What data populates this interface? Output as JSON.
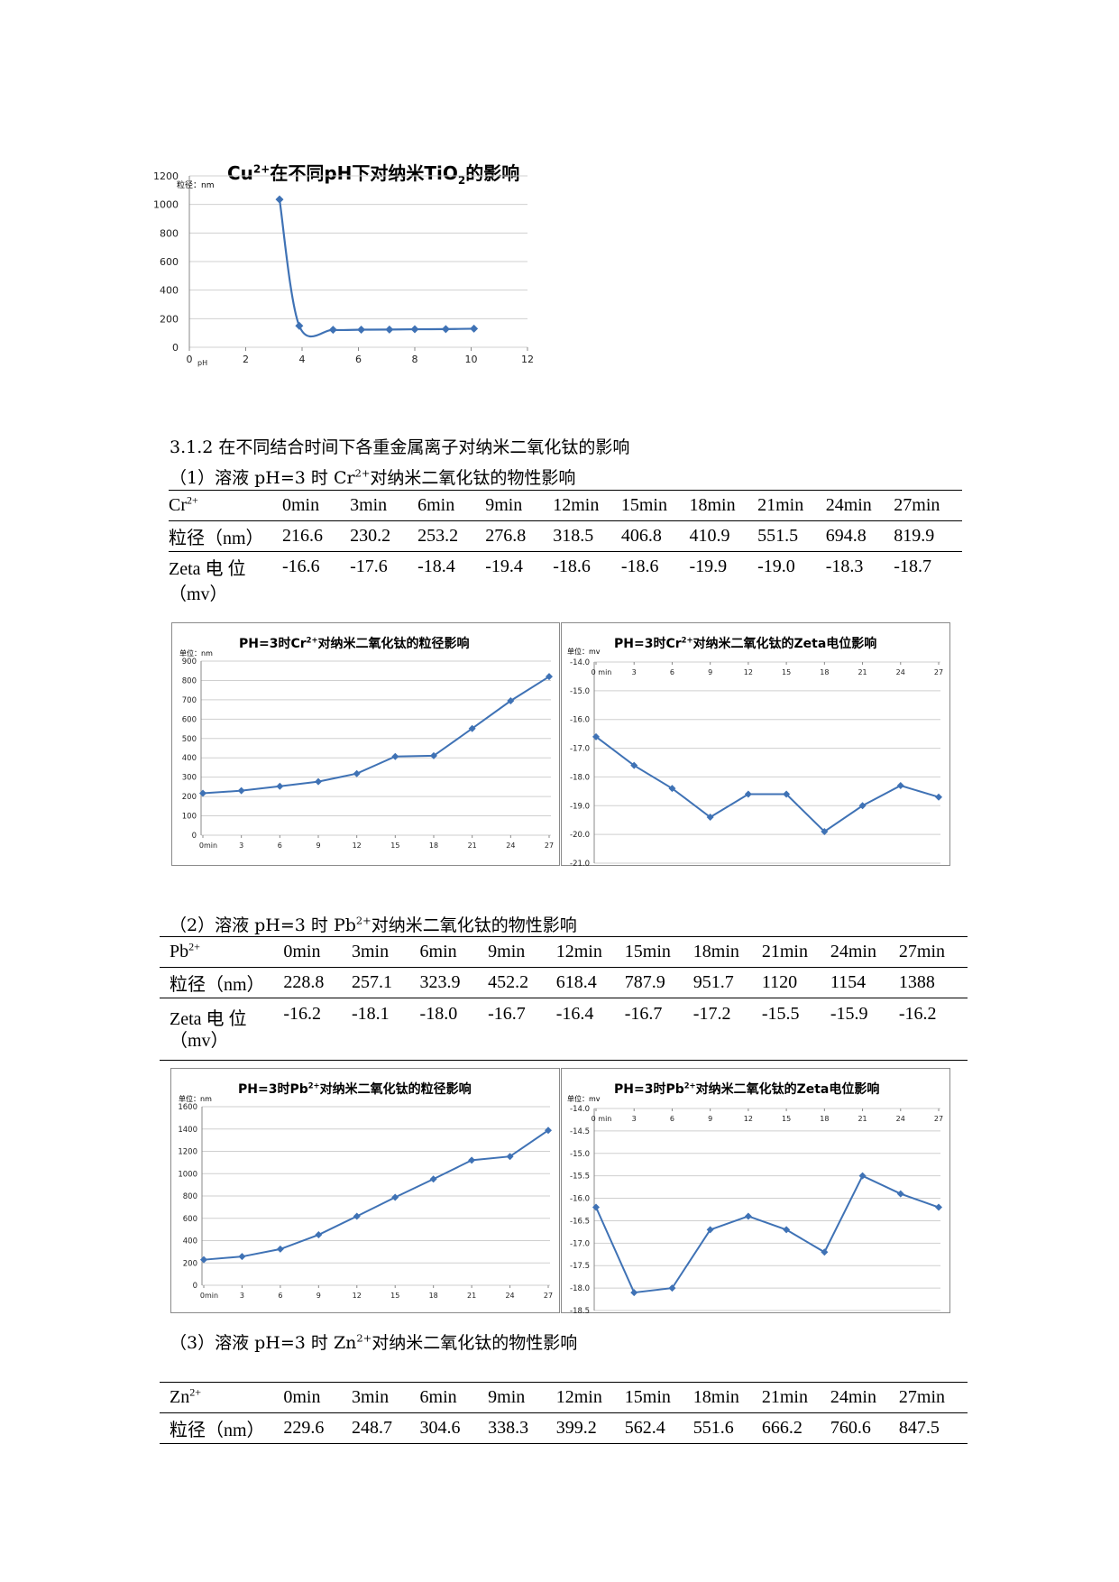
{
  "chart1": {
    "title_pre": "Cu",
    "title_sup": "2+",
    "title_mid": "在不同pH下对纳米TiO",
    "title_sub": "2",
    "title_post": "的影响",
    "unit": "粒径：nm",
    "x_unit": "pH",
    "chart_data": {
      "type": "line",
      "x": [
        3.2,
        3.9,
        5.1,
        6.1,
        7.1,
        8.0,
        9.1,
        10.1
      ],
      "values": [
        1035,
        150,
        122,
        123,
        124,
        126,
        127,
        130
      ],
      "xlim": [
        0,
        12
      ],
      "ylim": [
        0,
        1200
      ],
      "xticks": [
        "0",
        "2",
        "4",
        "6",
        "8",
        "10",
        "12"
      ],
      "yticks": [
        "0",
        "200",
        "400",
        "600",
        "800",
        "1000",
        "1200"
      ],
      "smooth": true,
      "grid": true,
      "color": "#3f72b5"
    }
  },
  "section_heading": "3.1.2 在不同结合时间下各重金属离子对纳米二氧化钛的影响",
  "cr_caption": {
    "pre": "（1）溶液 pH=3 时 Cr",
    "sup": "2+",
    "post": "对纳米二氧化钛的物性影响"
  },
  "cr_table": {
    "ion": "Cr",
    "ion_sup": "2+",
    "headers": [
      "0min",
      "3min",
      "6min",
      "9min",
      "12min",
      "15min",
      "18min",
      "21min",
      "24min",
      "27min"
    ],
    "size_label": "粒径（nm）",
    "size": [
      "216.6",
      "230.2",
      "253.2",
      "276.8",
      "318.5",
      "406.8",
      "410.9",
      "551.5",
      "694.8",
      "819.9"
    ],
    "zeta_label": "Zeta 电 位",
    "zeta_label2": "（mv）",
    "zeta": [
      "-16.6",
      "-17.6",
      "-18.4",
      "-19.4",
      "-18.6",
      "-18.6",
      "-19.9",
      "-19.0",
      "-18.3",
      "-18.7"
    ]
  },
  "cr_size_chart": {
    "title_pre": "PH=3时Cr",
    "title_sup": "2+",
    "title_post": "对纳米二氧化钛的粒径影响",
    "unit": "单位：nm",
    "chart_data": {
      "type": "line",
      "categories": [
        "0min",
        "3",
        "6",
        "9",
        "12",
        "15",
        "18",
        "21",
        "24",
        "27"
      ],
      "values": [
        216.6,
        230.2,
        253.2,
        276.8,
        318.5,
        406.8,
        410.9,
        551.5,
        694.8,
        819.9
      ],
      "ylim": [
        0,
        900
      ],
      "yticks": [
        "0",
        "100",
        "200",
        "300",
        "400",
        "500",
        "600",
        "700",
        "800",
        "900"
      ],
      "grid": true,
      "color": "#3f72b5"
    }
  },
  "cr_zeta_chart": {
    "title_pre": "PH=3时Cr",
    "title_sup": "2+",
    "title_post": "对纳米二氧化钛的Zeta电位影响",
    "unit": "单位：mv",
    "chart_data": {
      "type": "line",
      "categories": [
        "0 min",
        "3",
        "6",
        "9",
        "12",
        "15",
        "18",
        "21",
        "24",
        "27"
      ],
      "values": [
        -16.6,
        -17.6,
        -18.4,
        -19.4,
        -18.6,
        -18.6,
        -19.9,
        -19.0,
        -18.3,
        -18.7
      ],
      "ylim": [
        -21.0,
        -14.0
      ],
      "yticks": [
        "-14.0",
        "-15.0",
        "-16.0",
        "-17.0",
        "-18.0",
        "-19.0",
        "-20.0",
        "-21.0"
      ],
      "grid": true,
      "color": "#3f72b5",
      "x_axis_position": "top"
    }
  },
  "pb_caption": {
    "pre": "（2）溶液 pH=3 时 Pb",
    "sup": "2+",
    "post": "对纳米二氧化钛的物性影响"
  },
  "pb_table": {
    "ion": "Pb",
    "ion_sup": "2+",
    "headers": [
      "0min",
      "3min",
      "6min",
      "9min",
      "12min",
      "15min",
      "18min",
      "21min",
      "24min",
      "27min"
    ],
    "size_label": "粒径（nm）",
    "size": [
      "228.8",
      "257.1",
      "323.9",
      "452.2",
      "618.4",
      "787.9",
      "951.7",
      "1120",
      "1154",
      "1388"
    ],
    "zeta_label": "Zeta 电 位",
    "zeta_label2": "（mv）",
    "zeta": [
      "-16.2",
      "-18.1",
      "-18.0",
      "-16.7",
      "-16.4",
      "-16.7",
      "-17.2",
      "-15.5",
      "-15.9",
      "-16.2"
    ]
  },
  "pb_size_chart": {
    "title_pre": "PH=3时Pb",
    "title_sup": "2+",
    "title_post": "对纳米二氧化钛的粒径影响",
    "unit": "单位：nm",
    "chart_data": {
      "type": "line",
      "categories": [
        "0min",
        "3",
        "6",
        "9",
        "12",
        "15",
        "18",
        "21",
        "24",
        "27"
      ],
      "values": [
        228.8,
        257.1,
        323.9,
        452.2,
        618.4,
        787.9,
        951.7,
        1120,
        1154,
        1388
      ],
      "ylim": [
        0,
        1600
      ],
      "yticks": [
        "0",
        "200",
        "400",
        "600",
        "800",
        "1000",
        "1200",
        "1400",
        "1600"
      ],
      "grid": true,
      "color": "#3f72b5"
    }
  },
  "pb_zeta_chart": {
    "title_pre": "PH=3时Pb",
    "title_sup": "2+",
    "title_post": "对纳米二氧化钛的Zeta电位影响",
    "unit": "单位：mv",
    "chart_data": {
      "type": "line",
      "categories": [
        "0 min",
        "3",
        "6",
        "9",
        "12",
        "15",
        "18",
        "21",
        "24",
        "27"
      ],
      "values": [
        -16.2,
        -18.1,
        -18.0,
        -16.7,
        -16.4,
        -16.7,
        -17.2,
        -15.5,
        -15.9,
        -16.2
      ],
      "ylim": [
        -18.5,
        -14.0
      ],
      "yticks": [
        "-14.0",
        "-14.5",
        "-15.0",
        "-15.5",
        "-16.0",
        "-16.5",
        "-17.0",
        "-17.5",
        "-18.0",
        "-18.5"
      ],
      "grid": true,
      "color": "#3f72b5",
      "x_axis_position": "top"
    }
  },
  "zn_caption": {
    "pre": "（3）溶液 pH=3 时 Zn",
    "sup": "2+",
    "post": "对纳米二氧化钛的物性影响"
  },
  "zn_table": {
    "ion": "Zn",
    "ion_sup": "2+",
    "headers": [
      "0min",
      "3min",
      "6min",
      "9min",
      "12min",
      "15min",
      "18min",
      "21min",
      "24min",
      "27min"
    ],
    "size_label": "粒径（nm）",
    "size": [
      "229.6",
      "248.7",
      "304.6",
      "338.3",
      "399.2",
      "562.4",
      "551.6",
      "666.2",
      "760.6",
      "847.5"
    ]
  }
}
